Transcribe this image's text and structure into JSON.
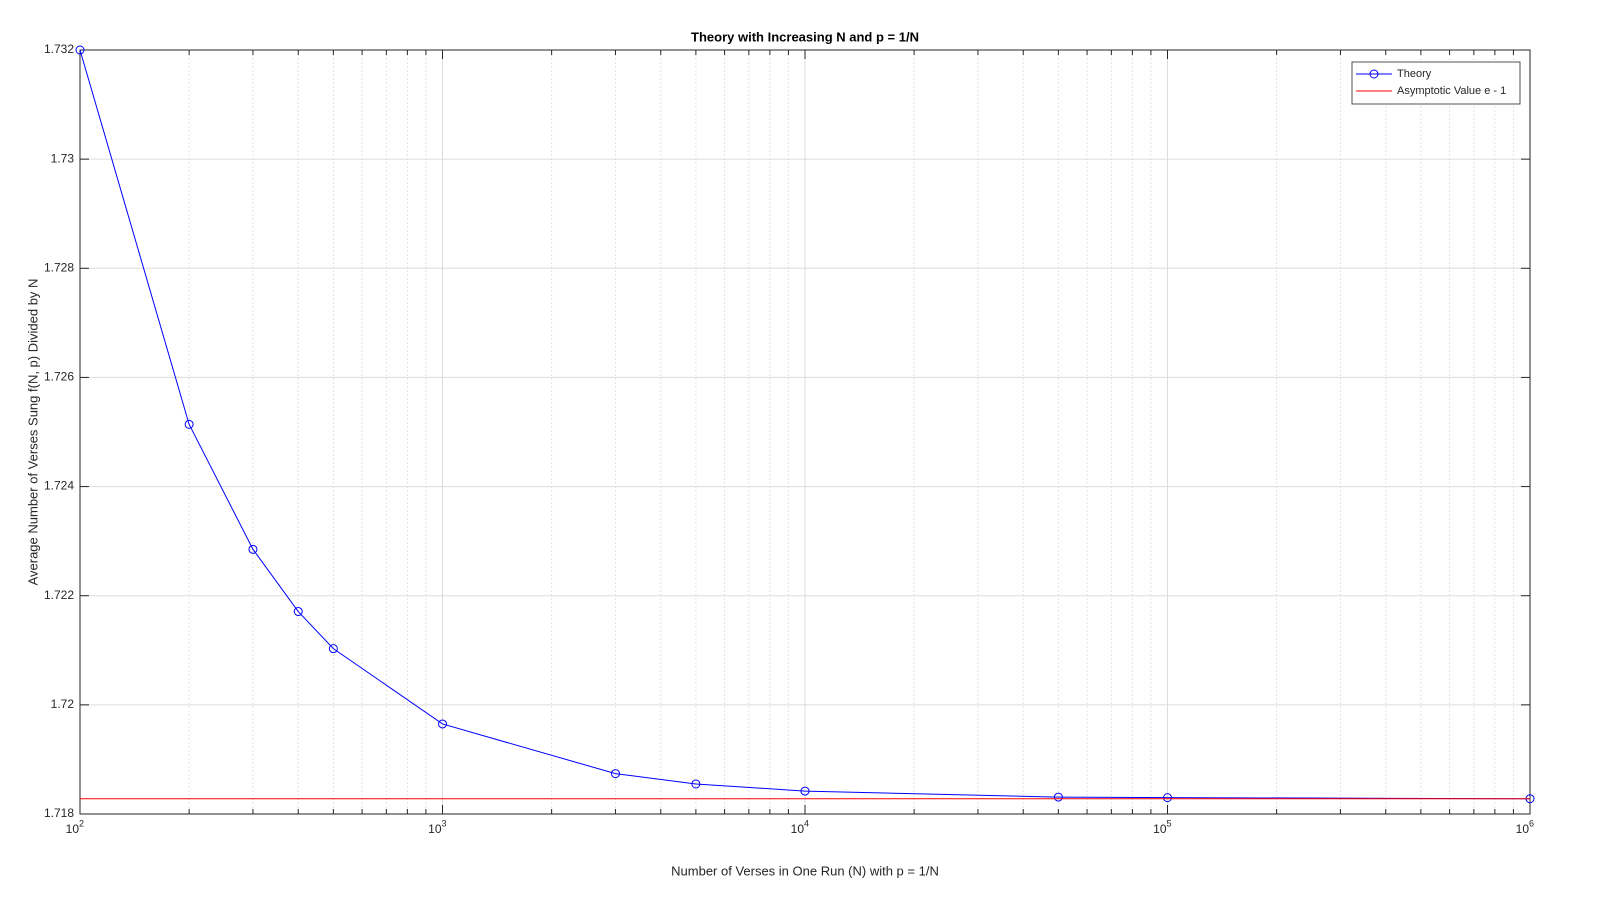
{
  "chart_data": {
    "type": "line",
    "title": "Theory with Increasing N and p = 1/N",
    "xlabel": "Number of Verses in One Run (N) with p = 1/N",
    "ylabel": "Average Number of Verses Sung f(N, p) Divided by N",
    "xscale": "log",
    "grid": true,
    "minor_grid": true,
    "legend": "upper right",
    "xlim": [
      100,
      1000000
    ],
    "ylim": [
      1.718,
      1.732
    ],
    "xticks": [
      {
        "value": 100,
        "label": "10",
        "exponent": "2"
      },
      {
        "value": 1000,
        "label": "10",
        "exponent": "3"
      },
      {
        "value": 10000,
        "label": "10",
        "exponent": "4"
      },
      {
        "value": 100000,
        "label": "10",
        "exponent": "5"
      },
      {
        "value": 1000000,
        "label": "10",
        "exponent": "6"
      }
    ],
    "yticks": [
      1.718,
      1.72,
      1.722,
      1.724,
      1.726,
      1.728,
      1.73,
      1.732
    ],
    "series": [
      {
        "name": "Theory",
        "color": "#0000ff",
        "marker": "circle",
        "x": [
          100,
          200,
          300,
          400,
          500,
          1000,
          3000,
          5000,
          10000,
          50000,
          100000,
          1000000
        ],
        "values": [
          1.732,
          1.72514,
          1.72285,
          1.72171,
          1.72103,
          1.71965,
          1.71874,
          1.71855,
          1.71842,
          1.71831,
          1.7183,
          1.71828
        ]
      },
      {
        "name": "Asymptotic Value e - 1",
        "color": "#ff0000",
        "x": [
          100,
          1000000
        ],
        "values": [
          1.71828,
          1.71828
        ]
      }
    ]
  }
}
